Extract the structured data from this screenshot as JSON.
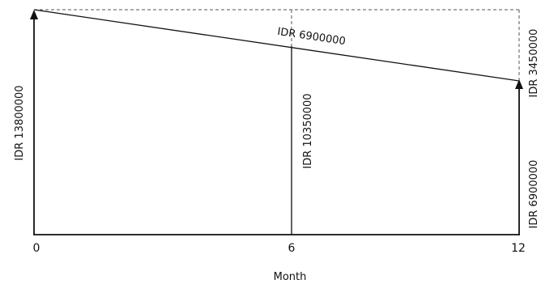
{
  "diagram": {
    "x_axis": {
      "title": "Month",
      "ticks": [
        "0",
        "6",
        "12"
      ]
    },
    "labels": {
      "start_value": "IDR 13800000",
      "mid_value": "IDR 10350000",
      "end_value_top": "IDR 3450000",
      "end_value_bottom": "IDR 6900000",
      "slope_label": "IDR 6900000"
    },
    "colors": {
      "line": "#111111",
      "dashed": "#555555",
      "background": "#ffffff"
    }
  }
}
